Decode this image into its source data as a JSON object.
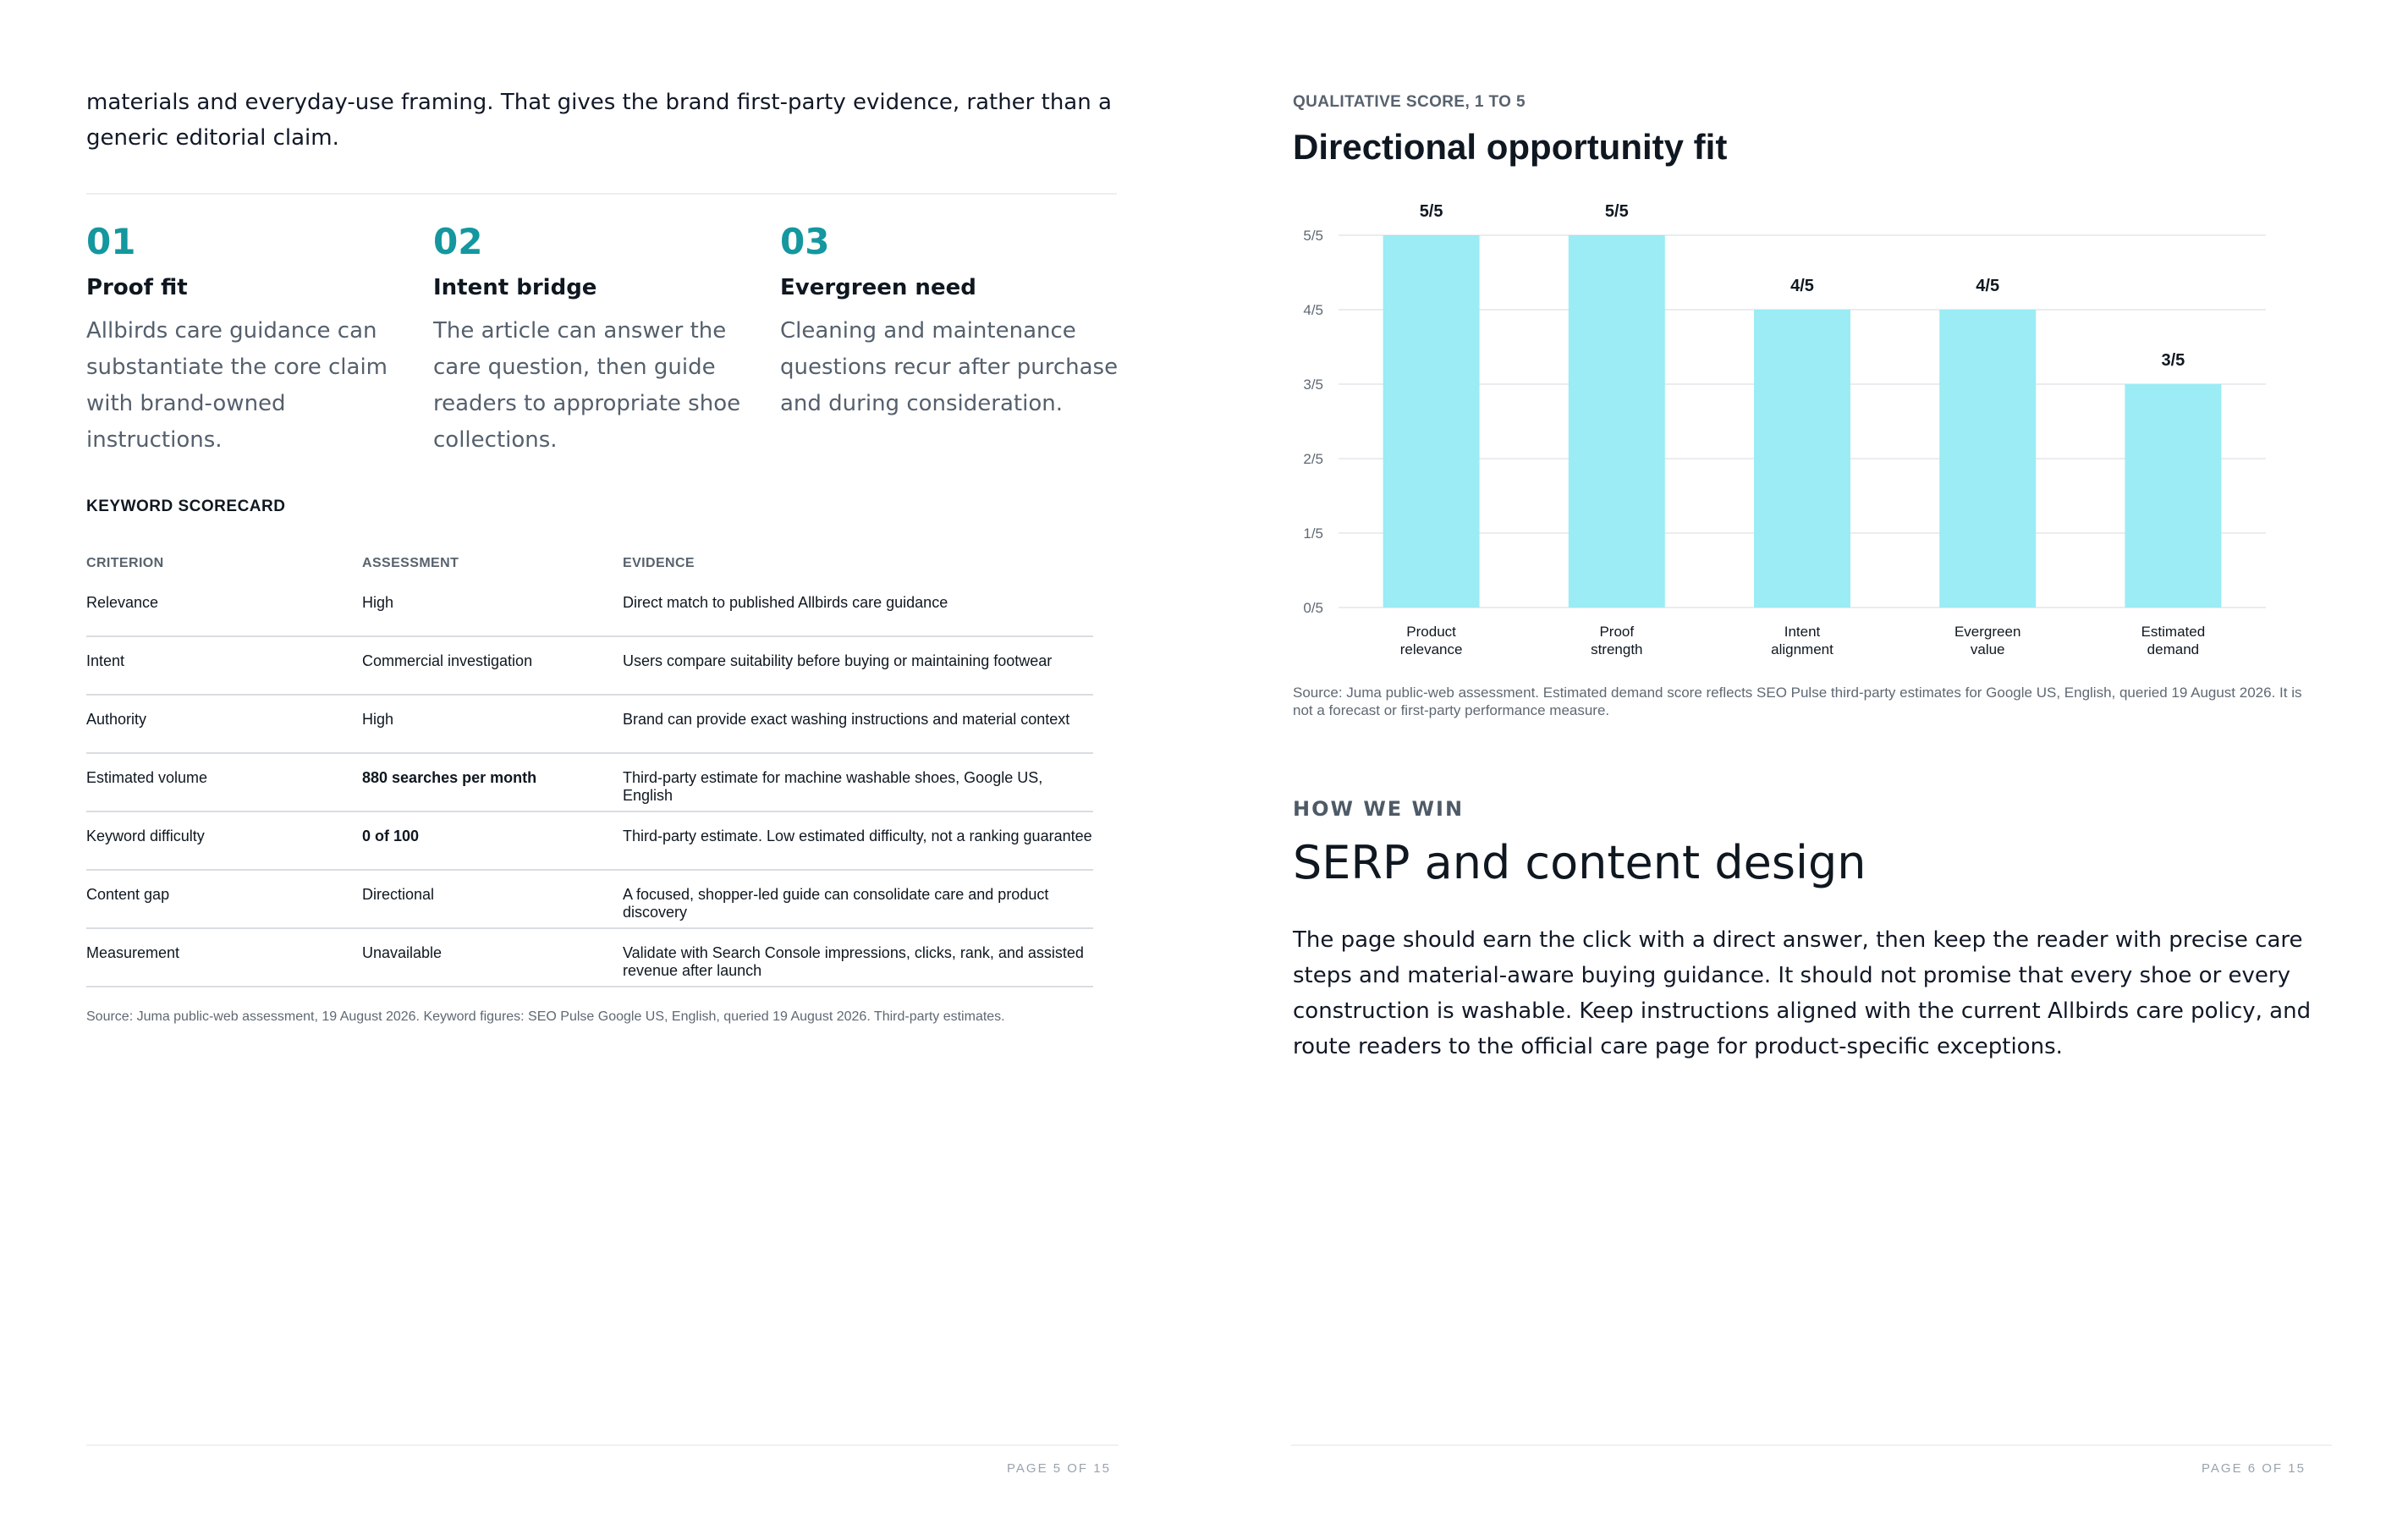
{
  "left_page": {
    "intro": "materials and everyday-use framing. That gives the brand first-party evidence, rather than a generic editorial claim.",
    "pillars": [
      {
        "number": "01",
        "title": "Proof fit",
        "text": "Allbirds care guidance can substantiate the core claim with brand-owned instructions."
      },
      {
        "number": "02",
        "title": "Intent bridge",
        "text": "The article can answer the care question, then guide readers to appropriate shoe collections."
      },
      {
        "number": "03",
        "title": "Evergreen need",
        "text": "Cleaning and maintenance questions recur after purchase and during consideration."
      }
    ],
    "scorecard": {
      "title": "KEYWORD SCORECARD",
      "headers": {
        "criterion": "CRITERION",
        "assessment": "ASSESSMENT",
        "evidence": "EVIDENCE"
      },
      "rows": [
        {
          "criterion": "Relevance",
          "assessment": "High",
          "evidence": "Direct match to published Allbirds care guidance"
        },
        {
          "criterion": "Intent",
          "assessment": "Commercial investigation",
          "evidence": "Users compare suitability before buying or maintaining footwear"
        },
        {
          "criterion": "Authority",
          "assessment": "High",
          "evidence": "Brand can provide exact washing instructions and material context"
        },
        {
          "criterion": "Estimated volume",
          "assessment": "880 searches per month",
          "evidence": "Third-party estimate for machine washable shoes, Google US, English"
        },
        {
          "criterion": "Keyword difficulty",
          "assessment": "0 of 100",
          "evidence": "Third-party estimate. Low estimated difficulty, not a ranking guarantee"
        },
        {
          "criterion": "Content gap",
          "assessment": "Directional",
          "evidence": "A focused, shopper-led guide can consolidate care and product discovery"
        },
        {
          "criterion": "Measurement",
          "assessment": "Unavailable",
          "evidence": "Validate with Search Console impressions, clicks, rank, and assisted revenue after launch"
        }
      ],
      "source": "Source: Juma public-web assessment, 19 August 2026. Keyword figures: SEO Pulse Google US, English, queried 19 August 2026. Third-party estimates."
    },
    "page_number": "PAGE 5 OF 15"
  },
  "right_page": {
    "chart_eyebrow": "QUALITATIVE SCORE, 1 TO 5",
    "chart_heading": "Directional opportunity fit",
    "chart_source": "Source: Juma public-web assessment. Estimated demand score reflects SEO Pulse third-party estimates for Google US, English, queried 19 August 2026. It is not a forecast or first-party performance measure.",
    "section_eyebrow": "HOW WE WIN",
    "section_title": "SERP and content design",
    "section_body": "The page should earn the click with a direct answer, then keep the reader with precise care steps and material-aware buying guidance. It should not promise that every shoe or every construction is washable. Keep instructions aligned with the current Allbirds care policy, and route readers to the official care page for product-specific exceptions.",
    "page_number": "PAGE 6 OF 15"
  },
  "chart_data": {
    "type": "bar",
    "categories": [
      [
        "Product",
        "relevance"
      ],
      [
        "Proof",
        "strength"
      ],
      [
        "Intent",
        "alignment"
      ],
      [
        "Evergreen",
        "value"
      ],
      [
        "Estimated",
        "demand"
      ]
    ],
    "values": [
      5,
      5,
      4,
      4,
      3
    ],
    "data_labels": [
      "5/5",
      "5/5",
      "4/5",
      "4/5",
      "3/5"
    ],
    "y_ticks": [
      "0/5",
      "1/5",
      "2/5",
      "3/5",
      "4/5",
      "5/5"
    ],
    "ylim": [
      0,
      5
    ],
    "grid": true,
    "bar_color": "#9becf4",
    "title": "",
    "xlabel": "",
    "ylabel": ""
  },
  "colors": {
    "accent": "#14979f",
    "bar": "#9becf4",
    "muted_text": "#58626e"
  }
}
